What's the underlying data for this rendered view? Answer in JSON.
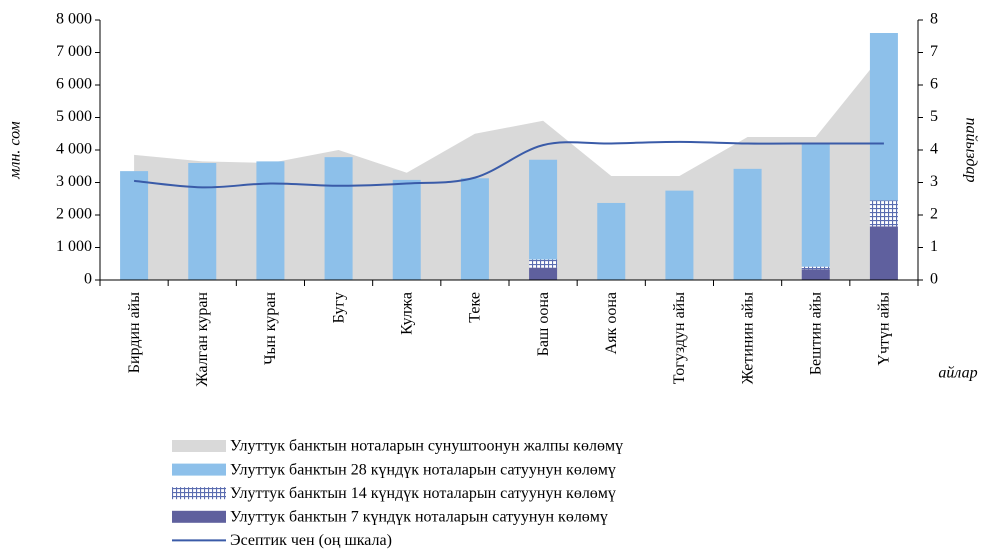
{
  "chart_data": {
    "type": "bar",
    "ylabel": "млн. сом",
    "y2label": "пайыздар",
    "xlabel": "айлар",
    "categories": [
      "Бирдин айы",
      "Жалган куран",
      "Чын куран",
      "Бугу",
      "Кулжа",
      "Теке",
      "Баш оона",
      "Аяк оона",
      "Тогуздун айы",
      "Жетинин айы",
      "Бештин айы",
      "Үчтүн айы"
    ],
    "series": [
      {
        "name": "Улуттук банктын ноталарын сунуштоонун жалпы көлөмү",
        "type": "area",
        "color": "#d9d9d9",
        "values": [
          3850,
          3650,
          3600,
          4000,
          3300,
          4500,
          4900,
          3200,
          3200,
          4400,
          4400,
          7000
        ]
      },
      {
        "name": "Улуттук банктын 28 күндүк ноталарын сатуунун көлөмү",
        "type": "bar",
        "color": "#8dc0ea",
        "values": [
          3350,
          3600,
          3650,
          3780,
          3080,
          3130,
          3070,
          2370,
          2750,
          3420,
          3790,
          5150
        ]
      },
      {
        "name": "Улуттук банктын 14 күндүк ноталарын сатуунун көлөмү",
        "type": "bar",
        "pattern": true,
        "color": "#5a6cb0",
        "values": [
          0,
          0,
          0,
          0,
          0,
          0,
          250,
          0,
          0,
          0,
          80,
          800
        ]
      },
      {
        "name": "Улуттук банктын 7 күндүк ноталарын сатуунун көлөмү",
        "type": "bar",
        "color": "#5f609e",
        "values": [
          0,
          0,
          0,
          0,
          0,
          0,
          380,
          0,
          0,
          0,
          330,
          1650
        ]
      },
      {
        "name": "Эсептик чен (оң шкала)",
        "type": "line",
        "axis": "y2",
        "color": "#3a5ba8",
        "values": [
          3.05,
          2.85,
          2.97,
          2.9,
          2.97,
          3.15,
          4.15,
          4.2,
          4.25,
          4.2,
          4.2,
          4.2
        ]
      }
    ],
    "ylim": [
      0,
      8000
    ],
    "yticks": [
      {
        "value": 0,
        "label": "0"
      },
      {
        "value": 1000,
        "label": "1 000"
      },
      {
        "value": 2000,
        "label": "2 000"
      },
      {
        "value": 3000,
        "label": "3 000"
      },
      {
        "value": 4000,
        "label": "4 000"
      },
      {
        "value": 5000,
        "label": "5 000"
      },
      {
        "value": 6000,
        "label": "6 000"
      },
      {
        "value": 7000,
        "label": "7 000"
      },
      {
        "value": 8000,
        "label": "8 000"
      }
    ],
    "y2lim": [
      0,
      8
    ],
    "y2ticks": [
      0,
      1,
      2,
      3,
      4,
      5,
      6,
      7,
      8
    ]
  }
}
